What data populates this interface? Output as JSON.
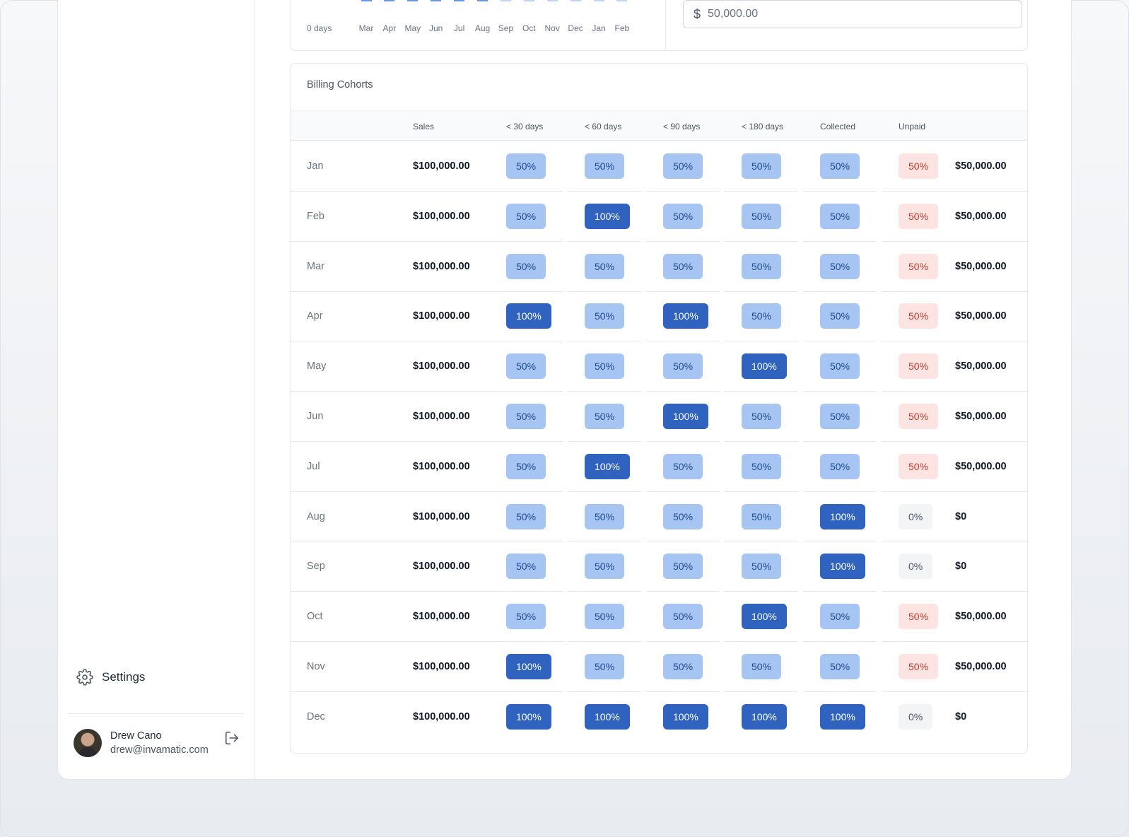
{
  "sidebar": {
    "settings_label": "Settings",
    "user": {
      "name": "Drew Cano",
      "email": "drew@invamatic.com"
    }
  },
  "chart_data": {
    "type": "bar",
    "title": "",
    "y_tick_label": "0 days",
    "categories": [
      "Mar",
      "Apr",
      "May",
      "Jun",
      "Jul",
      "Aug",
      "Sep",
      "Oct",
      "Nov",
      "Dec",
      "Jan",
      "Feb"
    ],
    "series_colors": [
      "#6b97e0",
      "#6b97e0",
      "#6b97e0",
      "#6b97e0",
      "#6b97e0",
      "#6b97e0",
      "#bed3f5",
      "#bed3f5",
      "#bed3f5",
      "#bed3f5",
      "#bed3f5",
      "#bed3f5"
    ]
  },
  "amount_input": {
    "currency_symbol": "$",
    "placeholder": "50,000.00"
  },
  "cohorts": {
    "title": "Billing Cohorts",
    "headers": [
      "Sales",
      "< 30 days",
      "< 60 days",
      "< 90 days",
      "< 180 days",
      "Collected",
      "Unpaid"
    ],
    "rows": [
      {
        "month": "Jan",
        "sales": "$100,000.00",
        "cells": [
          "50%",
          "50%",
          "50%",
          "50%",
          "50%"
        ],
        "unpaid": "50%",
        "unpaid_amount": "$50,000.00"
      },
      {
        "month": "Feb",
        "sales": "$100,000.00",
        "cells": [
          "50%",
          "100%",
          "50%",
          "50%",
          "50%"
        ],
        "unpaid": "50%",
        "unpaid_amount": "$50,000.00"
      },
      {
        "month": "Mar",
        "sales": "$100,000.00",
        "cells": [
          "50%",
          "50%",
          "50%",
          "50%",
          "50%"
        ],
        "unpaid": "50%",
        "unpaid_amount": "$50,000.00"
      },
      {
        "month": "Apr",
        "sales": "$100,000.00",
        "cells": [
          "100%",
          "50%",
          "100%",
          "50%",
          "50%"
        ],
        "unpaid": "50%",
        "unpaid_amount": "$50,000.00"
      },
      {
        "month": "May",
        "sales": "$100,000.00",
        "cells": [
          "50%",
          "50%",
          "50%",
          "100%",
          "50%"
        ],
        "unpaid": "50%",
        "unpaid_amount": "$50,000.00"
      },
      {
        "month": "Jun",
        "sales": "$100,000.00",
        "cells": [
          "50%",
          "50%",
          "100%",
          "50%",
          "50%"
        ],
        "unpaid": "50%",
        "unpaid_amount": "$50,000.00"
      },
      {
        "month": "Jul",
        "sales": "$100,000.00",
        "cells": [
          "50%",
          "100%",
          "50%",
          "50%",
          "50%"
        ],
        "unpaid": "50%",
        "unpaid_amount": "$50,000.00"
      },
      {
        "month": "Aug",
        "sales": "$100,000.00",
        "cells": [
          "50%",
          "50%",
          "50%",
          "50%",
          "100%"
        ],
        "unpaid": "0%",
        "unpaid_amount": "$0"
      },
      {
        "month": "Sep",
        "sales": "$100,000.00",
        "cells": [
          "50%",
          "50%",
          "50%",
          "50%",
          "100%"
        ],
        "unpaid": "0%",
        "unpaid_amount": "$0"
      },
      {
        "month": "Oct",
        "sales": "$100,000.00",
        "cells": [
          "50%",
          "50%",
          "50%",
          "100%",
          "50%"
        ],
        "unpaid": "50%",
        "unpaid_amount": "$50,000.00"
      },
      {
        "month": "Nov",
        "sales": "$100,000.00",
        "cells": [
          "100%",
          "50%",
          "50%",
          "50%",
          "50%"
        ],
        "unpaid": "50%",
        "unpaid_amount": "$50,000.00"
      },
      {
        "month": "Dec",
        "sales": "$100,000.00",
        "cells": [
          "100%",
          "100%",
          "100%",
          "100%",
          "100%"
        ],
        "unpaid": "0%",
        "unpaid_amount": "$0"
      }
    ]
  }
}
